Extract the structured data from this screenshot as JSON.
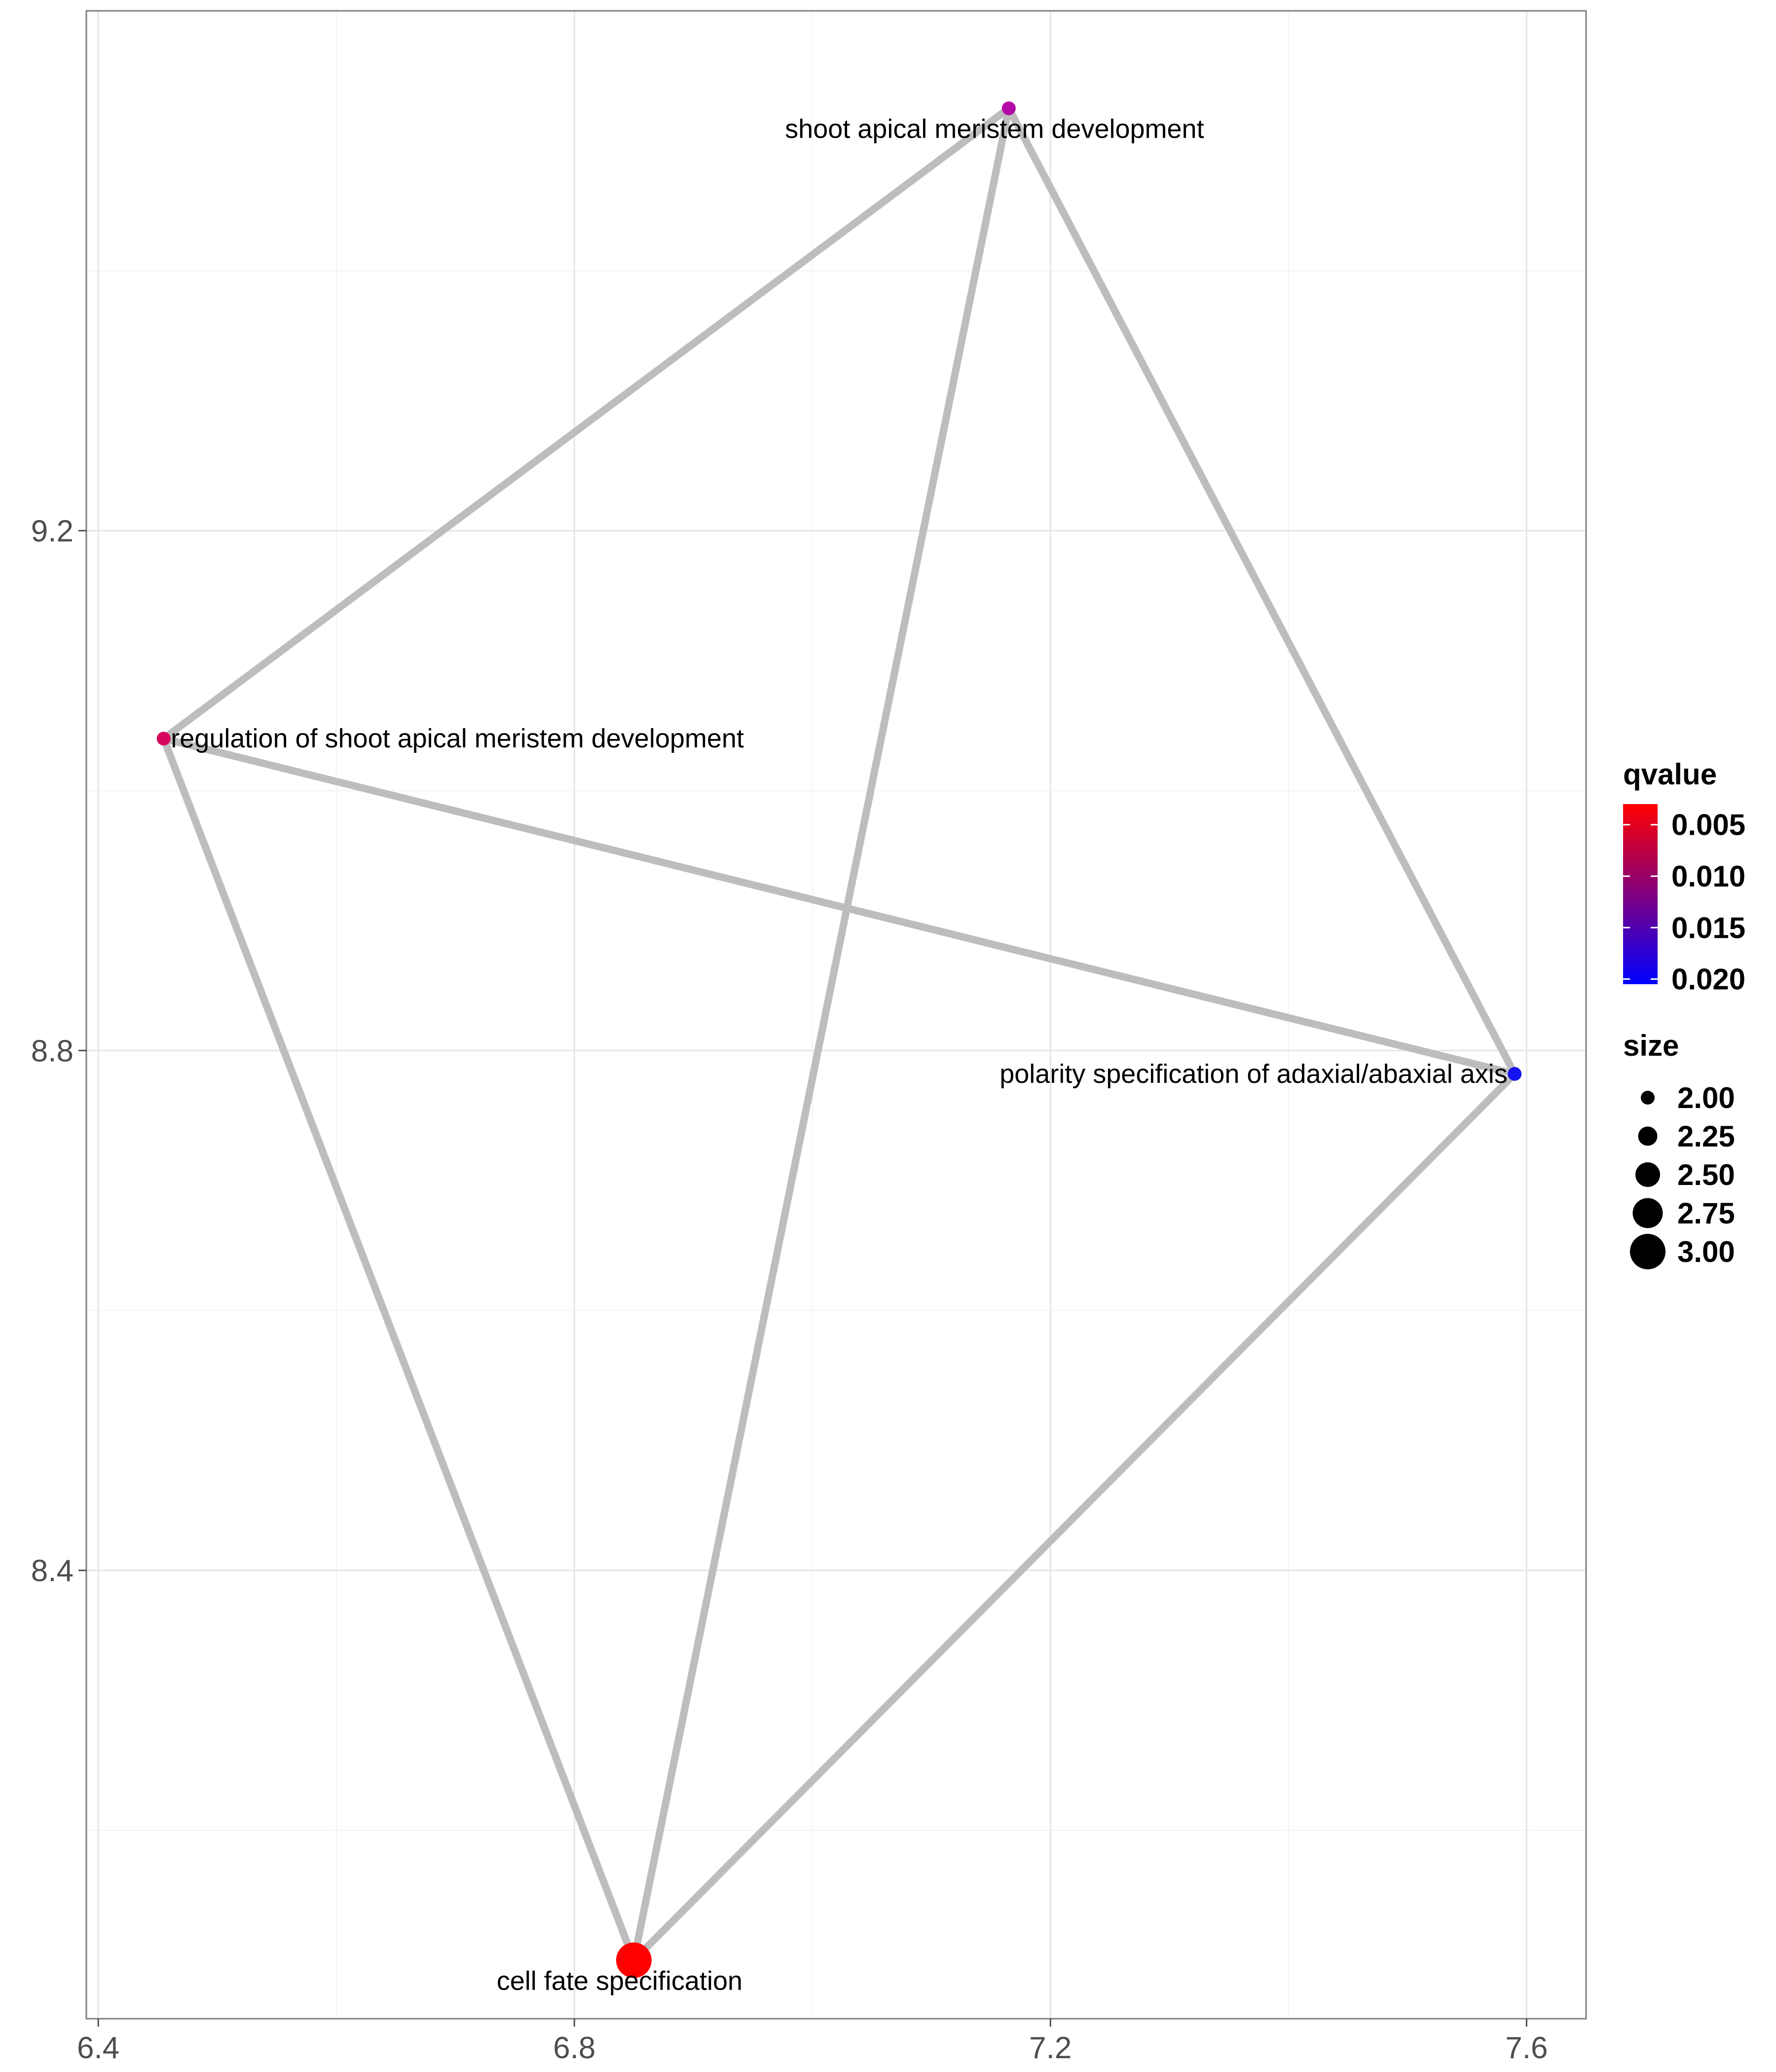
{
  "chart_data": {
    "type": "network",
    "title": "",
    "xlabel": "",
    "ylabel": "",
    "xlim": [
      6.39,
      7.65
    ],
    "ylim": [
      8.055,
      9.6
    ],
    "x_ticks": [
      6.4,
      6.8,
      7.2,
      7.6
    ],
    "x_tick_labels": [
      "6.4",
      "6.8",
      "7.2",
      "7.6"
    ],
    "y_ticks": [
      8.4,
      8.8,
      9.2
    ],
    "y_tick_labels": [
      "8.4",
      "8.8",
      "9.2"
    ],
    "grid": true,
    "edge_color": "#bdbdbd",
    "nodes": [
      {
        "id": "shoot",
        "label": "shoot apical meristem development",
        "x": 7.165,
        "y": 9.525,
        "qvalue": 0.0135,
        "size": 2,
        "color": "#b30ba6",
        "label_anchor": "center",
        "label_dx": -0.012,
        "label_dy": -0.016
      },
      {
        "id": "regulation",
        "label": "regulation of shoot apical meristem development",
        "x": 6.455,
        "y": 9.04,
        "qvalue": 0.01,
        "size": 2,
        "color": "#d6065e",
        "label_anchor": "start",
        "label_dx": 0.006,
        "label_dy": 0.0
      },
      {
        "id": "polarity",
        "label": "polarity specification of adaxial/abaxial axis",
        "x": 7.59,
        "y": 8.782,
        "qvalue": 0.0205,
        "size": 2,
        "color": "#1414f0",
        "label_anchor": "end",
        "label_dx": -0.006,
        "label_dy": 0.0
      },
      {
        "id": "cellfate",
        "label": "cell fate specification",
        "x": 6.85,
        "y": 8.1,
        "qvalue": 0.003,
        "size": 3,
        "color": "#ff0000",
        "label_anchor": "center",
        "label_dx": -0.012,
        "label_dy": -0.016
      }
    ],
    "edges": [
      {
        "source": "shoot",
        "target": "regulation"
      },
      {
        "source": "shoot",
        "target": "polarity"
      },
      {
        "source": "shoot",
        "target": "cellfate"
      },
      {
        "source": "regulation",
        "target": "polarity"
      },
      {
        "source": "regulation",
        "target": "cellfate"
      },
      {
        "source": "polarity",
        "target": "cellfate"
      }
    ],
    "legend": {
      "placement": "right",
      "qvalue": {
        "title": "qvalue",
        "labels": [
          "0.005",
          "0.010",
          "0.015",
          "0.020"
        ],
        "values": [
          0.005,
          0.01,
          0.015,
          0.02
        ],
        "range": [
          0.003,
          0.0205
        ],
        "color_low_q": "#ff0000",
        "color_high_q": "#0000ff"
      },
      "size": {
        "title": "size",
        "labels": [
          "2.00",
          "2.25",
          "2.50",
          "2.75",
          "3.00"
        ],
        "values": [
          2.0,
          2.25,
          2.5,
          2.75,
          3.0
        ],
        "color": "#000000"
      }
    }
  }
}
